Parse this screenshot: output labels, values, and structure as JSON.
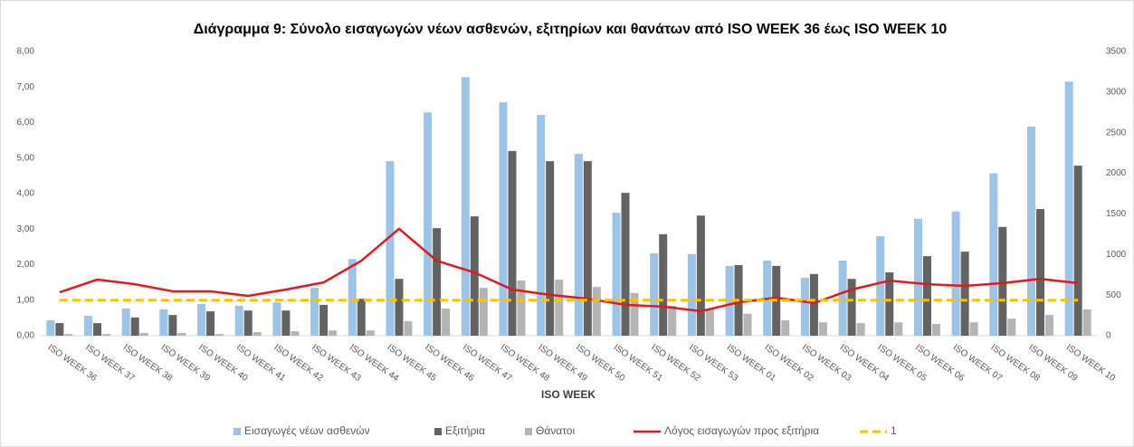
{
  "chart_data": {
    "type": "combo",
    "title": "Διάγραμμα 9: Σύνολο εισαγωγών νέων ασθενών, εξιτηρίων και θανάτων από ISO WEEK 36 έως ISO WEEK 10",
    "x_label": "ISO WEEK",
    "categories": [
      "ISO WEEK 36",
      "ISO WEEK 37",
      "ISO WEEK 38",
      "ISO WEEK 39",
      "ISO WEEK 40",
      "ISO WEEK 41",
      "ISO WEEK 42",
      "ISO WEEK 43",
      "ISO WEEK 44",
      "ISO WEEK 45",
      "ISO WEEK 46",
      "ISO WEEK 47",
      "ISO WEEK 48",
      "ISO WEEK 49",
      "ISO WEEK 50",
      "ISO WEEK 51",
      "ISO WEEK 52",
      "ISO WEEK 53",
      "ISO WEEK 01",
      "ISO WEEK 02",
      "ISO WEEK 03",
      "ISO WEEK 04",
      "ISO WEEK 05",
      "ISO WEEK 06",
      "ISO WEEK 07",
      "ISO WEEK 08",
      "ISO WEEK 09",
      "ISO WEEK 10"
    ],
    "ylim": [
      0,
      8
    ],
    "yticks": [
      {
        "value": 0,
        "label": "0,00"
      },
      {
        "value": 1,
        "label": "1,00"
      },
      {
        "value": 2,
        "label": "2,00"
      },
      {
        "value": 3,
        "label": "3,00"
      },
      {
        "value": 4,
        "label": "4,00"
      },
      {
        "value": 5,
        "label": "5,00"
      },
      {
        "value": 6,
        "label": "6,00"
      },
      {
        "value": 7,
        "label": "7,00"
      },
      {
        "value": 8,
        "label": "8,00"
      }
    ],
    "y2lim": [
      0,
      3500
    ],
    "y2ticks": [
      0,
      500,
      1000,
      1500,
      2000,
      2500,
      3000,
      3500
    ],
    "series": [
      {
        "name": "Εισαγωγές νέων ασθενών",
        "kind": "bar",
        "axis": "y2",
        "color": "#9dc3e6",
        "values": [
          190,
          245,
          335,
          325,
          390,
          370,
          410,
          590,
          945,
          2150,
          2750,
          3185,
          2875,
          2720,
          2240,
          1515,
          1015,
          1005,
          860,
          925,
          715,
          925,
          1225,
          1440,
          1530,
          2000,
          2575,
          3130
        ]
      },
      {
        "name": "Εξιτήρια",
        "kind": "bar",
        "axis": "y2",
        "color": "#636363",
        "values": [
          155,
          155,
          225,
          255,
          300,
          310,
          310,
          380,
          455,
          700,
          1325,
          1470,
          2275,
          2150,
          2150,
          1760,
          1250,
          1480,
          870,
          860,
          760,
          700,
          780,
          980,
          1035,
          1340,
          1560,
          2095
        ]
      },
      {
        "name": "Θάνατοι",
        "kind": "bar",
        "axis": "y2",
        "color": "#b4b4b4",
        "values": [
          20,
          20,
          35,
          35,
          20,
          45,
          55,
          65,
          65,
          180,
          335,
          590,
          680,
          690,
          600,
          525,
          370,
          335,
          270,
          190,
          165,
          155,
          165,
          145,
          165,
          210,
          255,
          325
        ]
      },
      {
        "name": "Λόγος εισαγωγών προς εξιτήρια",
        "kind": "line",
        "axis": "y",
        "color": "#e0191e",
        "values": [
          1.22,
          1.58,
          1.45,
          1.25,
          1.25,
          1.12,
          1.3,
          1.5,
          2.11,
          3.01,
          2.11,
          1.78,
          1.3,
          1.15,
          1.04,
          0.87,
          0.82,
          0.69,
          0.94,
          1.07,
          0.92,
          1.3,
          1.55,
          1.45,
          1.4,
          1.48,
          1.6,
          1.48
        ]
      },
      {
        "name": "1",
        "kind": "line",
        "dashed": true,
        "axis": "y",
        "color": "#ffc000",
        "values": [
          1,
          1,
          1,
          1,
          1,
          1,
          1,
          1,
          1,
          1,
          1,
          1,
          1,
          1,
          1,
          1,
          1,
          1,
          1,
          1,
          1,
          1,
          1,
          1,
          1,
          1,
          1,
          1
        ]
      }
    ]
  }
}
